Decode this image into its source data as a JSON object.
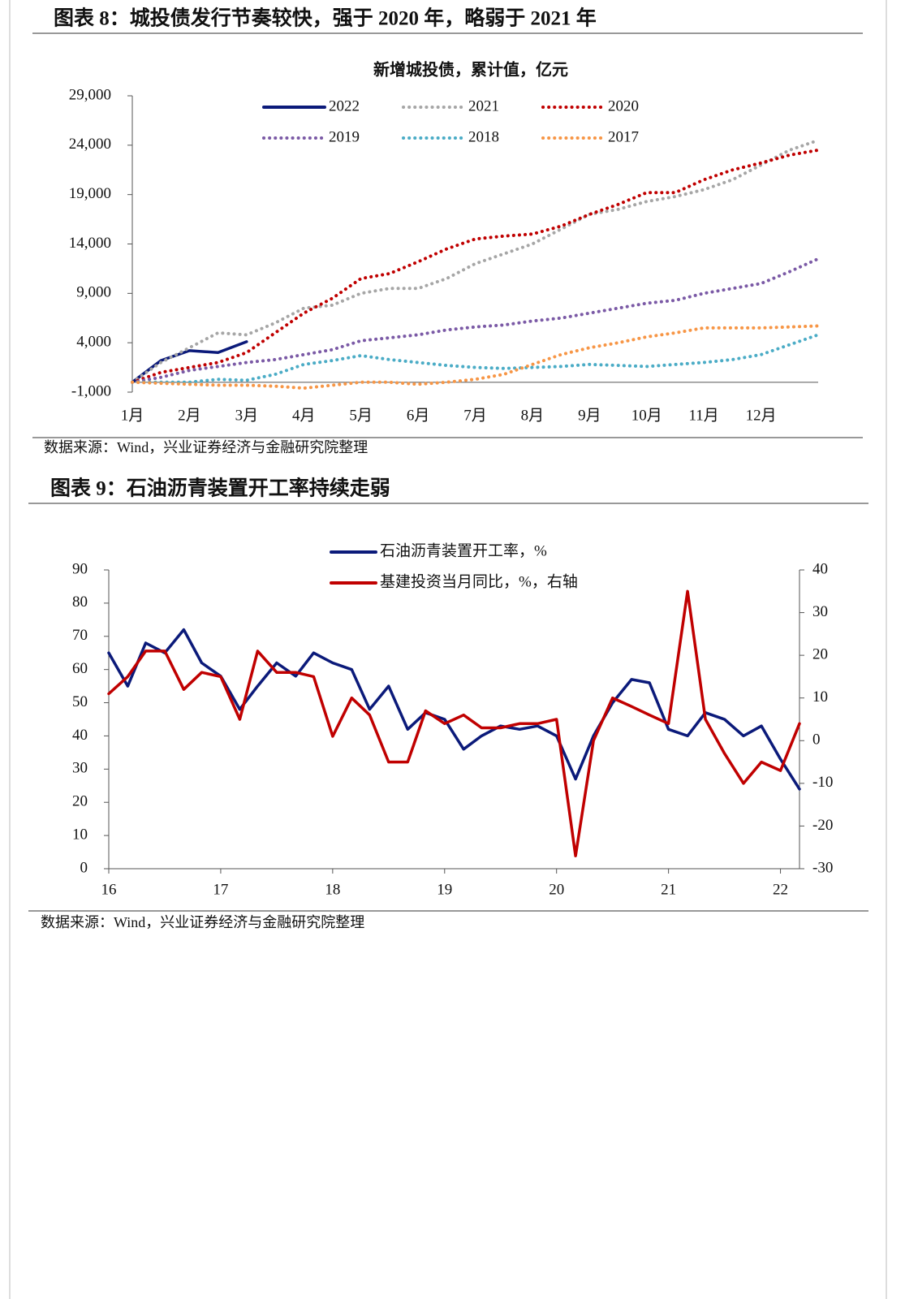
{
  "chart_data": [
    {
      "type": "line",
      "caption": "图表 8：城投债发行节奏较快，强于 2020 年，略弱于 2021 年",
      "title": "新增城投债，累计值，亿元",
      "source": "数据来源：Wind，兴业证券经济与金融研究院整理",
      "categories": [
        "1月",
        null,
        "2月",
        null,
        "3月",
        null,
        "4月",
        null,
        "5月",
        null,
        "6月",
        null,
        "7月",
        null,
        "8月",
        null,
        "9月",
        null,
        "10月",
        null,
        "11月",
        null,
        "12月",
        null,
        null
      ],
      "ylim": [
        -1000,
        29000
      ],
      "yticks": [
        {
          "value": -1000,
          "label": "-1,000"
        },
        {
          "value": 4000,
          "label": "4,000"
        },
        {
          "value": 9000,
          "label": "9,000"
        },
        {
          "value": 14000,
          "label": "14,000"
        },
        {
          "value": 19000,
          "label": "19,000"
        },
        {
          "value": 24000,
          "label": "24,000"
        },
        {
          "value": 29000,
          "label": "29,000"
        }
      ],
      "series": [
        {
          "name": "2022",
          "color": "#0b1a7a",
          "dash": "solid",
          "values": [
            0,
            2200,
            3200,
            3000,
            4100,
            null,
            null,
            null,
            null,
            null,
            null,
            null,
            null,
            null,
            null,
            null,
            null,
            null,
            null,
            null,
            null,
            null,
            null,
            null,
            null
          ]
        },
        {
          "name": "2021",
          "color": "#a6a6a6",
          "dash": "dotted",
          "values": [
            0,
            2000,
            3500,
            5000,
            4800,
            6000,
            7500,
            7800,
            9000,
            9500,
            9500,
            10500,
            12000,
            13000,
            14000,
            15500,
            17000,
            17500,
            18300,
            18800,
            19500,
            20500,
            22000,
            23500,
            24500
          ]
        },
        {
          "name": "2020",
          "color": "#c00000",
          "dash": "dotted",
          "values": [
            0,
            1000,
            1500,
            2000,
            3000,
            5000,
            7000,
            8500,
            10500,
            11000,
            12200,
            13500,
            14500,
            14800,
            15000,
            15800,
            17000,
            18000,
            19200,
            19200,
            20500,
            21500,
            22200,
            23000,
            23500
          ]
        },
        {
          "name": "2019",
          "color": "#7b5aa6",
          "dash": "dotted",
          "values": [
            0,
            500,
            1200,
            1600,
            2000,
            2300,
            2800,
            3300,
            4200,
            4500,
            4800,
            5300,
            5600,
            5800,
            6200,
            6500,
            7000,
            7500,
            8000,
            8300,
            9000,
            9500,
            10000,
            11200,
            12500
          ]
        },
        {
          "name": "2018",
          "color": "#4bacc6",
          "dash": "dotted",
          "values": [
            0,
            0,
            0,
            300,
            200,
            800,
            1800,
            2200,
            2700,
            2300,
            2000,
            1700,
            1500,
            1400,
            1500,
            1600,
            1800,
            1700,
            1600,
            1800,
            2000,
            2300,
            2800,
            3800,
            4800
          ]
        },
        {
          "name": "2017",
          "color": "#f79646",
          "dash": "dotted",
          "values": [
            0,
            -100,
            -200,
            -300,
            -300,
            -400,
            -600,
            -300,
            0,
            0,
            -200,
            0,
            300,
            800,
            1800,
            2800,
            3500,
            4000,
            4600,
            5000,
            5500,
            5500,
            5500,
            5600,
            5700
          ]
        }
      ]
    },
    {
      "type": "line",
      "caption": "图表 9：石油沥青装置开工率持续走弱",
      "source": "数据来源：Wind，兴业证券经济与金融研究院整理",
      "x": [
        16,
        16.17,
        16.33,
        16.5,
        16.67,
        16.83,
        17,
        17.17,
        17.33,
        17.5,
        17.67,
        17.83,
        18,
        18.17,
        18.33,
        18.5,
        18.67,
        18.83,
        19,
        19.17,
        19.33,
        19.5,
        19.67,
        19.83,
        20,
        20.17,
        20.33,
        20.5,
        20.67,
        20.83,
        21,
        21.17,
        21.33,
        21.5,
        21.67,
        21.83,
        22,
        22.17
      ],
      "xlim": [
        16,
        22.17
      ],
      "xticks": [
        16,
        17,
        18,
        19,
        20,
        21,
        22
      ],
      "ylim": [
        0,
        90
      ],
      "yticks": [
        0,
        10,
        20,
        30,
        40,
        50,
        60,
        70,
        80,
        90
      ],
      "y2lim": [
        -30,
        40
      ],
      "y2ticks": [
        -30,
        -20,
        -10,
        0,
        10,
        20,
        30,
        40
      ],
      "series": [
        {
          "name": "石油沥青装置开工率，%",
          "color": "#0b1a7a",
          "dash": "solid",
          "values": [
            65,
            55,
            68,
            65,
            72,
            62,
            58,
            48,
            55,
            62,
            58,
            65,
            62,
            60,
            48,
            55,
            42,
            47,
            45,
            36,
            40,
            43,
            42,
            43,
            40,
            27,
            40,
            50,
            57,
            56,
            42,
            40,
            47,
            45,
            40,
            43,
            33,
            24
          ]
        },
        {
          "name": "基建投资当月同比，%，右轴",
          "color": "#c00000",
          "dash": "solid",
          "axis": "y2",
          "values": [
            11,
            15,
            21,
            21,
            12,
            16,
            15,
            5,
            21,
            16,
            16,
            15,
            1,
            10,
            6,
            -5,
            -5,
            7,
            4,
            6,
            3,
            3,
            4,
            4,
            5,
            -27,
            0,
            10,
            8,
            6,
            4,
            35,
            5,
            -3,
            -10,
            -5,
            -7,
            4
          ]
        }
      ]
    }
  ]
}
